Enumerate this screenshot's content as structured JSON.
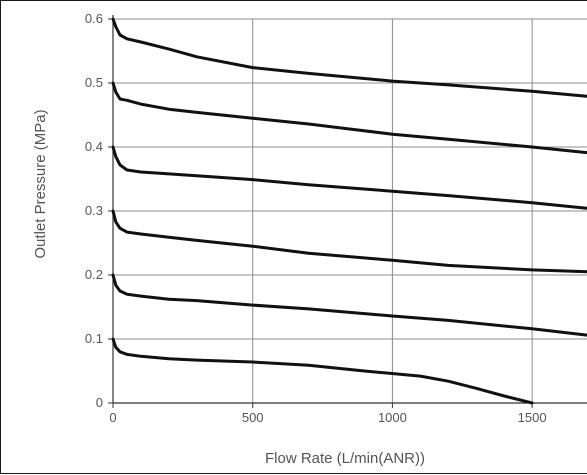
{
  "chart_data": {
    "type": "line",
    "title": "",
    "xlabel": "Flow Rate (L/min(ANR))",
    "ylabel": "Outlet Pressure (MPa)",
    "xlim": [
      0,
      1700
    ],
    "ylim": [
      0,
      0.6
    ],
    "grid": true,
    "x_ticks": [
      "0",
      "500",
      "1000",
      "1500"
    ],
    "y_ticks": [
      "0",
      "0.1",
      "0.2",
      "0.3",
      "0.4",
      "0.5",
      "0.6"
    ],
    "colors": {
      "line": "#111111",
      "grid": "#8c8c8c",
      "text": "#555555"
    },
    "series": [
      {
        "x": [
          0,
          10,
          25,
          50,
          100,
          200,
          300,
          500,
          700,
          1000,
          1200,
          1500,
          1700
        ],
        "values": [
          0.6,
          0.588,
          0.575,
          0.569,
          0.564,
          0.553,
          0.541,
          0.524,
          0.515,
          0.503,
          0.497,
          0.487,
          0.479
        ]
      },
      {
        "x": [
          0,
          10,
          25,
          50,
          100,
          200,
          300,
          500,
          700,
          1000,
          1200,
          1500,
          1700
        ],
        "values": [
          0.5,
          0.486,
          0.475,
          0.473,
          0.467,
          0.459,
          0.454,
          0.445,
          0.436,
          0.42,
          0.412,
          0.4,
          0.391
        ]
      },
      {
        "x": [
          0,
          10,
          25,
          50,
          100,
          200,
          300,
          500,
          700,
          1000,
          1200,
          1500,
          1700
        ],
        "values": [
          0.4,
          0.385,
          0.372,
          0.364,
          0.361,
          0.358,
          0.355,
          0.349,
          0.341,
          0.331,
          0.324,
          0.313,
          0.304
        ]
      },
      {
        "x": [
          0,
          10,
          25,
          50,
          100,
          200,
          300,
          500,
          700,
          1000,
          1200,
          1500,
          1700
        ],
        "values": [
          0.3,
          0.283,
          0.273,
          0.267,
          0.264,
          0.259,
          0.254,
          0.245,
          0.234,
          0.223,
          0.215,
          0.208,
          0.205
        ]
      },
      {
        "x": [
          0,
          10,
          25,
          50,
          100,
          200,
          300,
          500,
          700,
          1000,
          1200,
          1500,
          1700
        ],
        "values": [
          0.2,
          0.184,
          0.175,
          0.17,
          0.167,
          0.162,
          0.16,
          0.153,
          0.147,
          0.136,
          0.129,
          0.116,
          0.106
        ]
      },
      {
        "x": [
          0,
          10,
          25,
          50,
          100,
          200,
          300,
          500,
          700,
          900,
          1100,
          1200,
          1300,
          1400,
          1500
        ],
        "values": [
          0.1,
          0.087,
          0.08,
          0.076,
          0.073,
          0.069,
          0.067,
          0.064,
          0.059,
          0.05,
          0.042,
          0.034,
          0.023,
          0.011,
          0.0
        ]
      }
    ]
  }
}
